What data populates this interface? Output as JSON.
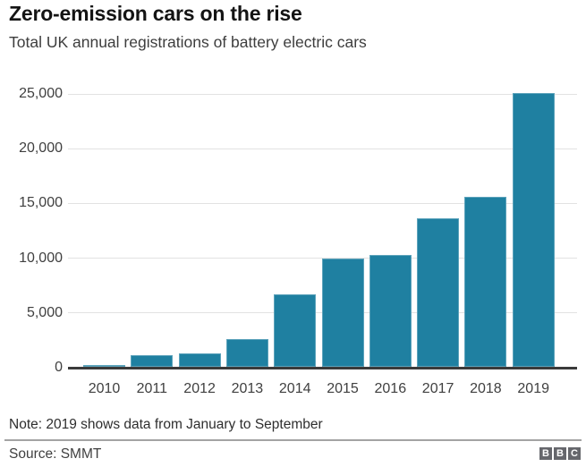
{
  "header": {
    "title": "Zero-emission cars on the rise",
    "subtitle": "Total UK annual registrations of battery electric cars"
  },
  "chart_data": {
    "type": "bar",
    "title": "Zero-emission cars on the rise",
    "subtitle": "Total UK annual registrations of battery electric cars",
    "categories": [
      "2010",
      "2011",
      "2012",
      "2013",
      "2014",
      "2015",
      "2016",
      "2017",
      "2018",
      "2019"
    ],
    "values": [
      150,
      1100,
      1250,
      2500,
      6650,
      9900,
      10250,
      13600,
      15500,
      25000
    ],
    "xlabel": "",
    "ylabel": "",
    "ylim": [
      0,
      25000
    ],
    "yticks": [
      0,
      5000,
      10000,
      15000,
      20000,
      25000
    ],
    "ytick_labels": [
      "0",
      "5,000",
      "10,000",
      "15,000",
      "20,000",
      "25,000"
    ],
    "grid": true,
    "legend": false,
    "bar_color": "#1f80a1"
  },
  "footer": {
    "note": "Note: 2019 shows data from January to September",
    "source": "Source: SMMT",
    "logo_letters": [
      "B",
      "B",
      "C"
    ]
  },
  "colors": {
    "bar": "#1f80a1",
    "gridline": "#e2e2e2",
    "axis": "#3a3a3a",
    "text_primary": "#141414",
    "text_secondary": "#404040",
    "divider": "#a3a3a3",
    "logo_background": "#66676c"
  }
}
